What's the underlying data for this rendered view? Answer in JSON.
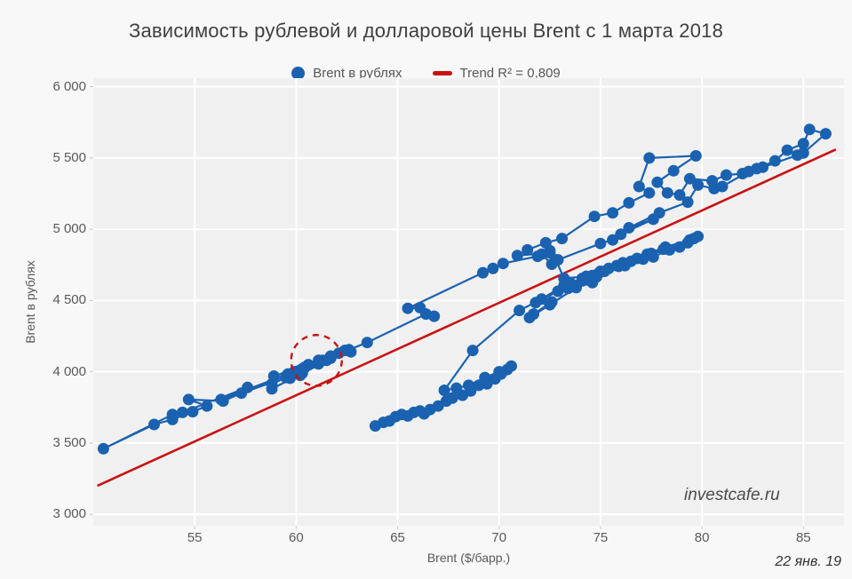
{
  "title": "Зависимость рублевой и долларовой цены Brent с 1 марта 2018",
  "legend": {
    "series_label": "Brent в рублях",
    "trend_label": "Trend R² = 0,809"
  },
  "watermark": "investcafe.ru",
  "date_note": "22 янв. 19",
  "colors": {
    "series": "#1a62b0",
    "trend": "#c81212",
    "annotation": "#c81212",
    "plot_background": "#f0f0f0",
    "gridline": "#ffffff"
  },
  "chart_data": {
    "type": "scatter",
    "title": "Зависимость рублевой и долларовой цены Brent с 1 марта 2018",
    "xlabel": "Brent ($/барр.)",
    "ylabel": "Brent в рублях",
    "xlim": [
      50,
      87
    ],
    "ylim": [
      2920,
      6060
    ],
    "x_ticks": [
      55,
      60,
      65,
      70,
      75,
      80,
      85
    ],
    "y_ticks": [
      3000,
      3500,
      4000,
      4500,
      5000,
      5500,
      6000
    ],
    "y_tick_labels": [
      "3 000",
      "3 500",
      "4 000",
      "4 500",
      "5 000",
      "5 500",
      "6 000"
    ],
    "grid": true,
    "legend_position": "top-center",
    "series": [
      {
        "name": "Brent в рублях",
        "style": "connected-scatter",
        "points": [
          [
            63.9,
            3620
          ],
          [
            64.3,
            3645
          ],
          [
            64.6,
            3655
          ],
          [
            64.9,
            3685
          ],
          [
            65.2,
            3700
          ],
          [
            65.5,
            3690
          ],
          [
            65.8,
            3715
          ],
          [
            66.1,
            3725
          ],
          [
            66.3,
            3705
          ],
          [
            66.6,
            3735
          ],
          [
            67.0,
            3760
          ],
          [
            67.4,
            3795
          ],
          [
            67.7,
            3815
          ],
          [
            68.2,
            3835
          ],
          [
            68.6,
            3865
          ],
          [
            69.0,
            3905
          ],
          [
            69.4,
            3915
          ],
          [
            69.8,
            3950
          ],
          [
            70.1,
            3985
          ],
          [
            70.4,
            4015
          ],
          [
            70.6,
            4040
          ],
          [
            70.0,
            4000
          ],
          [
            69.3,
            3960
          ],
          [
            68.5,
            3905
          ],
          [
            67.9,
            3885
          ],
          [
            67.3,
            3870
          ],
          [
            68.7,
            4150
          ],
          [
            71.0,
            4430
          ],
          [
            72.1,
            4510
          ],
          [
            72.6,
            4490
          ],
          [
            71.7,
            4405
          ],
          [
            71.5,
            4380
          ],
          [
            72.5,
            4470
          ],
          [
            73.8,
            4590
          ],
          [
            74.6,
            4625
          ],
          [
            74.4,
            4655
          ],
          [
            74.9,
            4690
          ],
          [
            75.9,
            4740
          ],
          [
            77.1,
            4790
          ],
          [
            77.5,
            4830
          ],
          [
            78.4,
            4855
          ],
          [
            79.3,
            4905
          ],
          [
            78.9,
            4875
          ],
          [
            79.6,
            4935
          ],
          [
            79.8,
            4950
          ],
          [
            78.1,
            4860
          ],
          [
            76.1,
            4765
          ],
          [
            75.4,
            4725
          ],
          [
            75.8,
            4745
          ],
          [
            76.5,
            4775
          ],
          [
            75.0,
            4705
          ],
          [
            74.1,
            4655
          ],
          [
            73.4,
            4585
          ],
          [
            74.8,
            4665
          ],
          [
            76.2,
            4745
          ],
          [
            77.6,
            4805
          ],
          [
            79.4,
            4925
          ],
          [
            78.2,
            4875
          ],
          [
            77.3,
            4825
          ],
          [
            76.8,
            4795
          ],
          [
            75.2,
            4705
          ],
          [
            74.3,
            4665
          ],
          [
            73.2,
            4605
          ],
          [
            71.8,
            4485
          ],
          [
            72.9,
            4565
          ],
          [
            73.5,
            4625
          ],
          [
            74.6,
            4675
          ],
          [
            74.1,
            4645
          ],
          [
            74.3,
            4670
          ],
          [
            73.2,
            4655
          ],
          [
            72.8,
            4785
          ],
          [
            72.5,
            4835
          ],
          [
            70.9,
            4815
          ],
          [
            71.4,
            4855
          ],
          [
            72.3,
            4905
          ],
          [
            73.1,
            4935
          ],
          [
            74.7,
            5090
          ],
          [
            75.6,
            5115
          ],
          [
            76.4,
            5185
          ],
          [
            77.4,
            5255
          ],
          [
            76.9,
            5300
          ],
          [
            77.4,
            5500
          ],
          [
            79.7,
            5515
          ],
          [
            78.6,
            5410
          ],
          [
            77.8,
            5330
          ],
          [
            78.3,
            5255
          ],
          [
            78.9,
            5240
          ],
          [
            79.4,
            5355
          ],
          [
            80.5,
            5340
          ],
          [
            81.2,
            5380
          ],
          [
            82.0,
            5390
          ],
          [
            82.7,
            5425
          ],
          [
            83.6,
            5480
          ],
          [
            84.2,
            5555
          ],
          [
            85.0,
            5600
          ],
          [
            85.3,
            5700
          ],
          [
            86.1,
            5670
          ],
          [
            85.0,
            5535
          ],
          [
            84.7,
            5520
          ],
          [
            83.0,
            5435
          ],
          [
            82.3,
            5405
          ],
          [
            81.0,
            5300
          ],
          [
            80.6,
            5285
          ],
          [
            79.8,
            5310
          ],
          [
            79.3,
            5190
          ],
          [
            77.9,
            5115
          ],
          [
            76.4,
            5010
          ],
          [
            77.6,
            5070
          ],
          [
            76.0,
            4965
          ],
          [
            75.6,
            4925
          ],
          [
            75.0,
            4900
          ],
          [
            72.9,
            4785
          ],
          [
            72.6,
            4755
          ],
          [
            72.1,
            4825
          ],
          [
            72.5,
            4850
          ],
          [
            71.9,
            4810
          ],
          [
            70.2,
            4760
          ],
          [
            69.7,
            4725
          ],
          [
            69.2,
            4695
          ],
          [
            65.5,
            4445
          ],
          [
            66.1,
            4450
          ],
          [
            66.8,
            4390
          ],
          [
            66.4,
            4405
          ],
          [
            63.5,
            4205
          ],
          [
            62.6,
            4155
          ],
          [
            58.8,
            3880
          ],
          [
            60.3,
            3990
          ],
          [
            60.2,
            3975
          ],
          [
            59.7,
            3955
          ],
          [
            59.5,
            3970
          ],
          [
            58.8,
            3915
          ],
          [
            61.7,
            4095
          ],
          [
            62.1,
            4130
          ],
          [
            61.1,
            4080
          ],
          [
            60.1,
            4005
          ],
          [
            61.7,
            4110
          ],
          [
            60.0,
            4000
          ],
          [
            60.2,
            4010
          ],
          [
            60.3,
            4020
          ],
          [
            61.5,
            4080
          ],
          [
            60.4,
            4025
          ],
          [
            59.6,
            3985
          ],
          [
            56.3,
            3805
          ],
          [
            57.6,
            3890
          ],
          [
            54.4,
            3715
          ],
          [
            53.9,
            3700
          ],
          [
            50.5,
            3460
          ],
          [
            53.0,
            3630
          ],
          [
            53.9,
            3665
          ],
          [
            54.9,
            3720
          ],
          [
            55.6,
            3760
          ],
          [
            54.7,
            3805
          ],
          [
            56.4,
            3795
          ],
          [
            57.3,
            3850
          ],
          [
            59.5,
            3960
          ],
          [
            59.9,
            4000
          ],
          [
            60.4,
            4030
          ],
          [
            58.9,
            3970
          ],
          [
            60.6,
            4050
          ],
          [
            61.3,
            4080
          ],
          [
            61.7,
            4105
          ],
          [
            62.7,
            4140
          ],
          [
            62.4,
            4150
          ],
          [
            61.1,
            4055
          ]
        ]
      }
    ],
    "trend": {
      "label": "Trend R² = 0,809",
      "r_squared": "0,809",
      "x1": 50.2,
      "y1": 3200,
      "x2": 86.6,
      "y2": 5560
    },
    "annotation_circle": {
      "x": 61.0,
      "y": 4080,
      "rx": 1.25,
      "ry": 178,
      "style": "dashed"
    }
  }
}
